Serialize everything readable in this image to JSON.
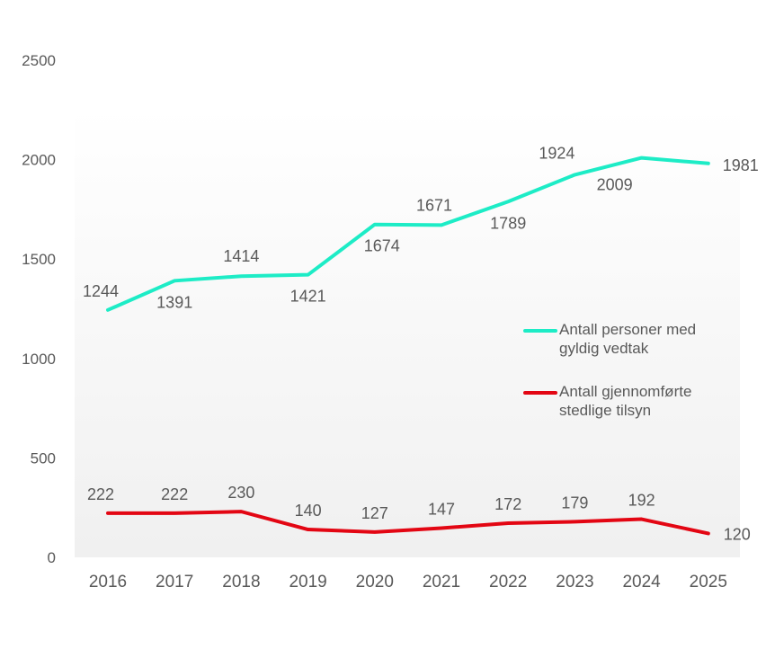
{
  "chart_data": {
    "type": "line",
    "categories": [
      "2016",
      "2017",
      "2018",
      "2019",
      "2020",
      "2021",
      "2022",
      "2023",
      "2024",
      "2025"
    ],
    "ylim": [
      0,
      2500
    ],
    "yticks": [
      "0",
      "500",
      "1000",
      "1500",
      "2000",
      "2500"
    ],
    "grid": false,
    "legend_placement": "right",
    "series": [
      {
        "name": "Antall personer med gyldig vedtak",
        "color": "#1DECC6",
        "values": [
          1244,
          1391,
          1414,
          1421,
          1674,
          1671,
          1789,
          1924,
          2009,
          1981
        ]
      },
      {
        "name": "Antall gjennomførte stedlige tilsyn",
        "color": "#E30613",
        "values": [
          222,
          222,
          230,
          140,
          127,
          147,
          172,
          179,
          192,
          120
        ]
      }
    ]
  }
}
